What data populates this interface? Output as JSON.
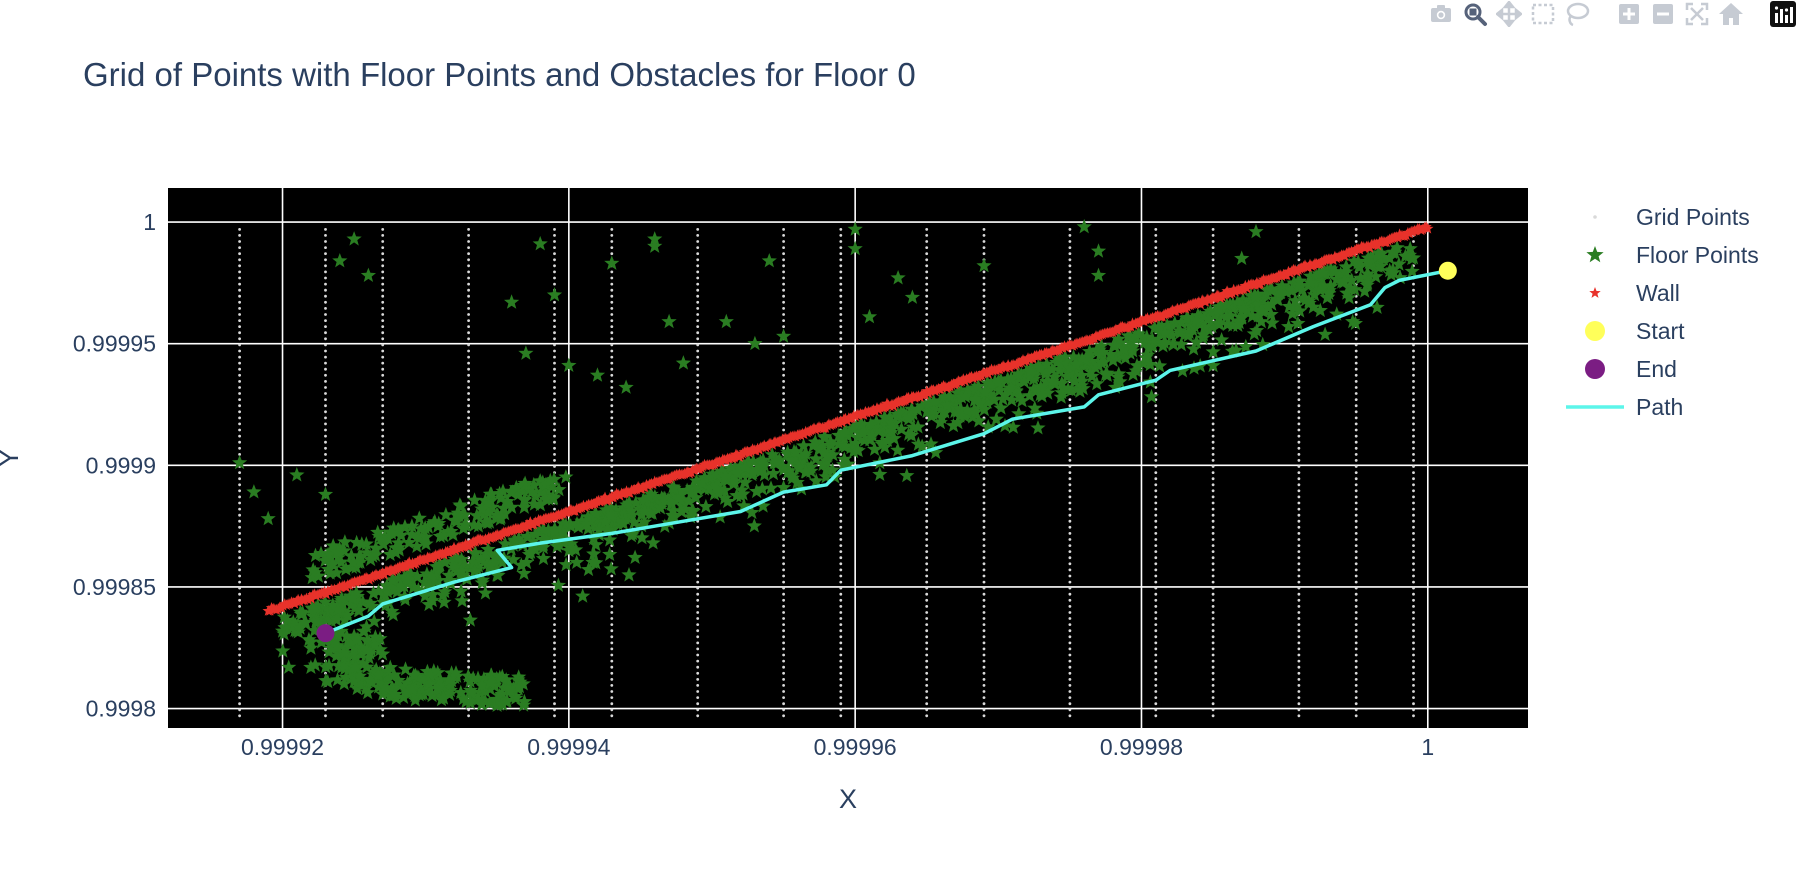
{
  "modebar": {
    "buttons": [
      {
        "name": "camera-icon",
        "label": "Download plot as a png"
      },
      {
        "name": "zoom-icon",
        "label": "Zoom"
      },
      {
        "name": "pan-icon",
        "label": "Pan"
      },
      {
        "name": "box-select-icon",
        "label": "Box Select"
      },
      {
        "name": "lasso-select-icon",
        "label": "Lasso Select"
      },
      {
        "name": "zoom-in-icon",
        "label": "Zoom in"
      },
      {
        "name": "zoom-out-icon",
        "label": "Zoom out"
      },
      {
        "name": "autoscale-icon",
        "label": "Autoscale"
      },
      {
        "name": "reset-axes-icon",
        "label": "Reset axes"
      },
      {
        "name": "plotly-logo-icon",
        "label": "Produced with Plotly"
      }
    ],
    "active": "zoom-icon"
  },
  "chart_data": {
    "type": "scatter",
    "title": "Grid of Points with Floor Points and Obstacles for Floor 0",
    "xlabel": "X",
    "ylabel": "Y",
    "xlim": [
      0.999912,
      1.000007
    ],
    "ylim": [
      0.999792,
      1.000014
    ],
    "xticks": [
      {
        "value": 0.99992,
        "label": "0.99992"
      },
      {
        "value": 0.99994,
        "label": "0.99994"
      },
      {
        "value": 0.99996,
        "label": "0.99996"
      },
      {
        "value": 0.99998,
        "label": "0.99998"
      },
      {
        "value": 1.0,
        "label": "1"
      }
    ],
    "yticks": [
      {
        "value": 0.9998,
        "label": "0.9998"
      },
      {
        "value": 0.99985,
        "label": "0.99985"
      },
      {
        "value": 0.9999,
        "label": "0.9999"
      },
      {
        "value": 0.99995,
        "label": "0.99995"
      },
      {
        "value": 1.0,
        "label": "1"
      }
    ],
    "plot_background": "#000000",
    "grid": true,
    "grid_color": "#ffffff",
    "legend_placement": "top-right",
    "series": [
      {
        "name": "Grid Points",
        "marker": "dot",
        "color": "#d9d9d9",
        "columns_x": [
          0.999917,
          0.999923,
          0.999927,
          0.999933,
          0.999939,
          0.999943,
          0.999949,
          0.999955,
          0.999959,
          0.999965,
          0.999969,
          0.999975,
          0.999981,
          0.999985,
          0.999991,
          0.999995,
          0.999999
        ],
        "y_range": [
          0.999797,
          0.999997
        ],
        "y_step": 2.5e-06
      },
      {
        "name": "Floor Points",
        "marker": "star",
        "color": "#2a7d22",
        "outliers": [
          {
            "x": 0.999925,
            "y": 0.999993
          },
          {
            "x": 0.999924,
            "y": 0.999984
          },
          {
            "x": 0.999926,
            "y": 0.999978
          },
          {
            "x": 0.999938,
            "y": 0.999991
          },
          {
            "x": 0.999939,
            "y": 0.99997
          },
          {
            "x": 0.999936,
            "y": 0.999967
          },
          {
            "x": 0.999946,
            "y": 0.999993
          },
          {
            "x": 0.999946,
            "y": 0.99999
          },
          {
            "x": 0.999943,
            "y": 0.999983
          },
          {
            "x": 0.999947,
            "y": 0.999959
          },
          {
            "x": 0.999951,
            "y": 0.999959
          },
          {
            "x": 0.999953,
            "y": 0.99995
          },
          {
            "x": 0.999954,
            "y": 0.999984
          },
          {
            "x": 0.99996,
            "y": 0.999997
          },
          {
            "x": 0.99996,
            "y": 0.999989
          },
          {
            "x": 0.999963,
            "y": 0.999977
          },
          {
            "x": 0.999964,
            "y": 0.999969
          },
          {
            "x": 0.999961,
            "y": 0.999961
          },
          {
            "x": 0.999955,
            "y": 0.999953
          },
          {
            "x": 0.999948,
            "y": 0.999942
          },
          {
            "x": 0.999942,
            "y": 0.999937
          },
          {
            "x": 0.99994,
            "y": 0.999941
          },
          {
            "x": 0.999937,
            "y": 0.999946
          },
          {
            "x": 0.999944,
            "y": 0.999932
          },
          {
            "x": 0.999976,
            "y": 0.999998
          },
          {
            "x": 0.999969,
            "y": 0.999982
          },
          {
            "x": 0.999977,
            "y": 0.999988
          },
          {
            "x": 0.999977,
            "y": 0.999978
          },
          {
            "x": 0.999987,
            "y": 0.999985
          },
          {
            "x": 0.999988,
            "y": 0.999996
          },
          {
            "x": 0.999917,
            "y": 0.999901
          },
          {
            "x": 0.999918,
            "y": 0.999889
          },
          {
            "x": 0.999919,
            "y": 0.999878
          },
          {
            "x": 0.999921,
            "y": 0.999896
          },
          {
            "x": 0.999923,
            "y": 0.999888
          }
        ]
      },
      {
        "name": "Wall",
        "marker": "star",
        "color": "#e8322b",
        "line_from": {
          "x": 0.999919,
          "y": 0.99984
        },
        "line_to": {
          "x": 1.0,
          "y": 0.999998
        }
      },
      {
        "name": "Start",
        "marker": "circle",
        "color": "#ffff5a",
        "point": {
          "x": 1.0000014,
          "y": 0.99998
        }
      },
      {
        "name": "End",
        "marker": "circle",
        "color": "#7b1d83",
        "point": {
          "x": 0.999923,
          "y": 0.999831
        }
      },
      {
        "name": "Path",
        "marker": "line",
        "color": "#5cf5ea",
        "x": [
          0.999923,
          0.999926,
          0.999927,
          0.999932,
          0.999936,
          0.999935,
          0.999938,
          0.999943,
          0.999947,
          0.999952,
          0.999955,
          0.999958,
          0.999959,
          0.999964,
          0.999969,
          0.999971,
          0.999976,
          0.999977,
          0.999981,
          0.999982,
          0.999988,
          0.999992,
          0.999996,
          0.999997,
          0.999998,
          1.0000014
        ],
        "y": [
          0.999831,
          0.999838,
          0.999843,
          0.999852,
          0.999858,
          0.999865,
          0.999868,
          0.999872,
          0.999876,
          0.999881,
          0.999889,
          0.999892,
          0.999898,
          0.999904,
          0.999913,
          0.999919,
          0.999924,
          0.999929,
          0.999935,
          0.999939,
          0.999947,
          0.999957,
          0.999966,
          0.999973,
          0.999976,
          0.99998
        ]
      }
    ],
    "legend": [
      {
        "name": "Grid Points",
        "marker": "dot",
        "color": "#d9d9d9"
      },
      {
        "name": "Floor Points",
        "marker": "star",
        "color": "#2a7d22"
      },
      {
        "name": "Wall",
        "marker": "small-star",
        "color": "#e8322b"
      },
      {
        "name": "Start",
        "marker": "circle",
        "color": "#ffff5a"
      },
      {
        "name": "End",
        "marker": "circle",
        "color": "#7b1d83"
      },
      {
        "name": "Path",
        "marker": "line",
        "color": "#5cf5ea"
      }
    ]
  }
}
